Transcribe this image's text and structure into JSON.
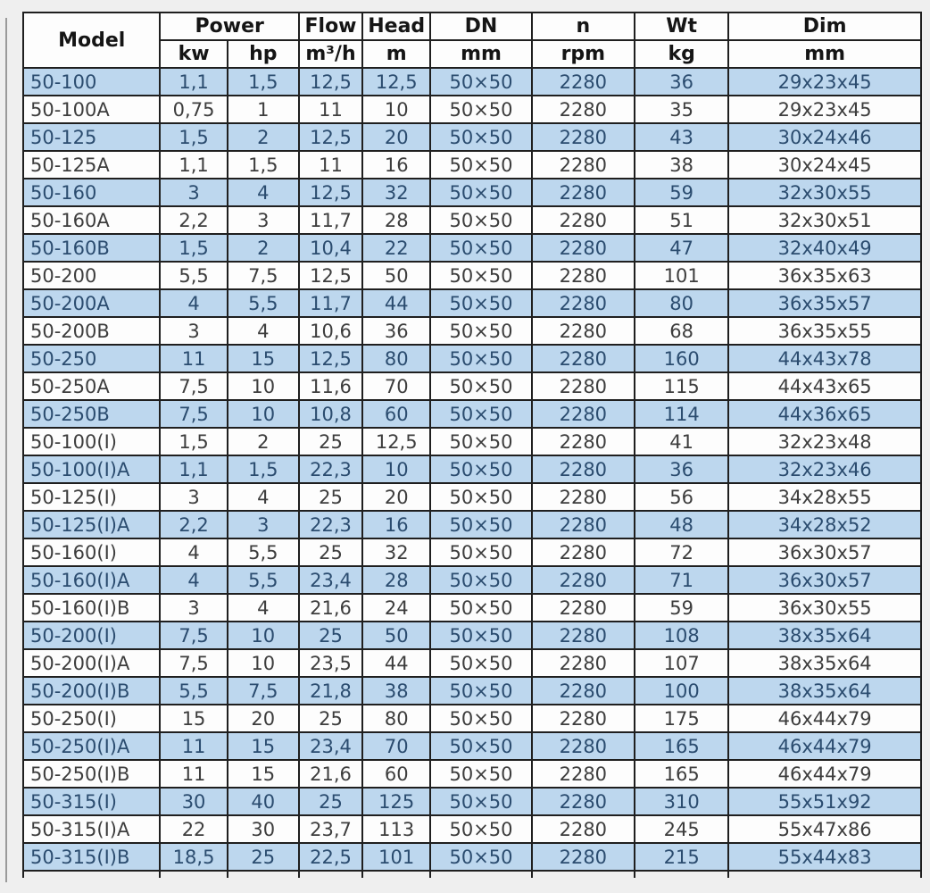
{
  "colors": {
    "page_bg": "#efefef",
    "header_bg": "#fdfdfd",
    "header_text": "#151515",
    "row_bg": "#fdfdfd",
    "row_alt_bg": "#bdd7ee",
    "text": "#3d3d3d",
    "alt_text": "#2b4c6f",
    "border": "#1f1f1f",
    "crop_line": "#9a9a9a"
  },
  "chart_data": {
    "type": "table",
    "title": "",
    "header_row1": [
      "Model",
      "Power",
      "Flow",
      "Head",
      "DN",
      "n",
      "Wt",
      "Dim"
    ],
    "header_row2": [
      "kw",
      "hp",
      "m³/h",
      "m",
      "mm",
      "rpm",
      "kg",
      "mm"
    ],
    "columns": [
      "Model",
      "Power kw",
      "Power hp",
      "Flow m³/h",
      "Head m",
      "DN mm",
      "n rpm",
      "Wt kg",
      "Dim mm"
    ],
    "rows": [
      [
        "50-100",
        "1,1",
        "1,5",
        "12,5",
        "12,5",
        "50×50",
        "2280",
        "36",
        "29x23x45"
      ],
      [
        "50-100A",
        "0,75",
        "1",
        "11",
        "10",
        "50×50",
        "2280",
        "35",
        "29x23x45"
      ],
      [
        "50-125",
        "1,5",
        "2",
        "12,5",
        "20",
        "50×50",
        "2280",
        "43",
        "30x24x46"
      ],
      [
        "50-125A",
        "1,1",
        "1,5",
        "11",
        "16",
        "50×50",
        "2280",
        "38",
        "30x24x45"
      ],
      [
        "50-160",
        "3",
        "4",
        "12,5",
        "32",
        "50×50",
        "2280",
        "59",
        "32x30x55"
      ],
      [
        "50-160A",
        "2,2",
        "3",
        "11,7",
        "28",
        "50×50",
        "2280",
        "51",
        "32x30x51"
      ],
      [
        "50-160B",
        "1,5",
        "2",
        "10,4",
        "22",
        "50×50",
        "2280",
        "47",
        "32x40x49"
      ],
      [
        "50-200",
        "5,5",
        "7,5",
        "12,5",
        "50",
        "50×50",
        "2280",
        "101",
        "36x35x63"
      ],
      [
        "50-200A",
        "4",
        "5,5",
        "11,7",
        "44",
        "50×50",
        "2280",
        "80",
        "36x35x57"
      ],
      [
        "50-200B",
        "3",
        "4",
        "10,6",
        "36",
        "50×50",
        "2280",
        "68",
        "36x35x55"
      ],
      [
        "50-250",
        "11",
        "15",
        "12,5",
        "80",
        "50×50",
        "2280",
        "160",
        "44x43x78"
      ],
      [
        "50-250A",
        "7,5",
        "10",
        "11,6",
        "70",
        "50×50",
        "2280",
        "115",
        "44x43x65"
      ],
      [
        "50-250B",
        "7,5",
        "10",
        "10,8",
        "60",
        "50×50",
        "2280",
        "114",
        "44x36x65"
      ],
      [
        "50-100(I)",
        "1,5",
        "2",
        "25",
        "12,5",
        "50×50",
        "2280",
        "41",
        "32x23x48"
      ],
      [
        "50-100(I)A",
        "1,1",
        "1,5",
        "22,3",
        "10",
        "50×50",
        "2280",
        "36",
        "32x23x46"
      ],
      [
        "50-125(I)",
        "3",
        "4",
        "25",
        "20",
        "50×50",
        "2280",
        "56",
        "34x28x55"
      ],
      [
        "50-125(I)A",
        "2,2",
        "3",
        "22,3",
        "16",
        "50×50",
        "2280",
        "48",
        "34x28x52"
      ],
      [
        "50-160(I)",
        "4",
        "5,5",
        "25",
        "32",
        "50×50",
        "2280",
        "72",
        "36x30x57"
      ],
      [
        "50-160(I)A",
        "4",
        "5,5",
        "23,4",
        "28",
        "50×50",
        "2280",
        "71",
        "36x30x57"
      ],
      [
        "50-160(I)B",
        "3",
        "4",
        "21,6",
        "24",
        "50×50",
        "2280",
        "59",
        "36x30x55"
      ],
      [
        "50-200(I)",
        "7,5",
        "10",
        "25",
        "50",
        "50×50",
        "2280",
        "108",
        "38x35x64"
      ],
      [
        "50-200(I)A",
        "7,5",
        "10",
        "23,5",
        "44",
        "50×50",
        "2280",
        "107",
        "38x35x64"
      ],
      [
        "50-200(I)B",
        "5,5",
        "7,5",
        "21,8",
        "38",
        "50×50",
        "2280",
        "100",
        "38x35x64"
      ],
      [
        "50-250(I)",
        "15",
        "20",
        "25",
        "80",
        "50×50",
        "2280",
        "175",
        "46x44x79"
      ],
      [
        "50-250(I)A",
        "11",
        "15",
        "23,4",
        "70",
        "50×50",
        "2280",
        "165",
        "46x44x79"
      ],
      [
        "50-250(I)B",
        "11",
        "15",
        "21,6",
        "60",
        "50×50",
        "2280",
        "165",
        "46x44x79"
      ],
      [
        "50-315(I)",
        "30",
        "40",
        "25",
        "125",
        "50×50",
        "2280",
        "310",
        "55x51x92"
      ],
      [
        "50-315(I)A",
        "22",
        "30",
        "23,7",
        "113",
        "50×50",
        "2280",
        "245",
        "55x47x86"
      ],
      [
        "50-315(I)B",
        "18,5",
        "25",
        "22,5",
        "101",
        "50×50",
        "2280",
        "215",
        "55x44x83"
      ]
    ],
    "layout": {
      "stripe_pattern": "odd-rows-blue",
      "first_row_striped": true,
      "grid": true
    }
  }
}
